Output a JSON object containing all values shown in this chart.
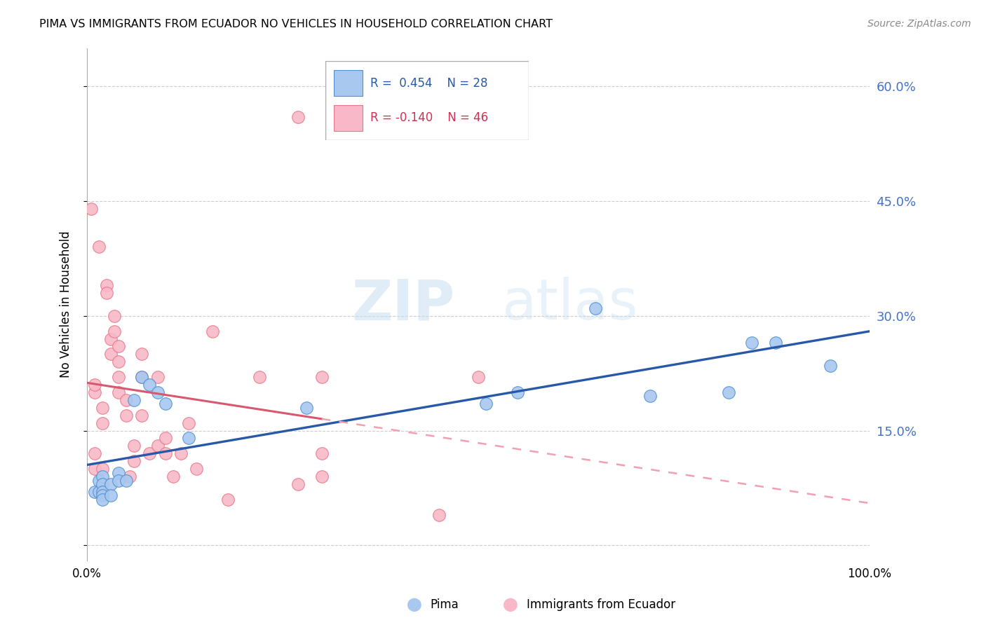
{
  "title": "PIMA VS IMMIGRANTS FROM ECUADOR NO VEHICLES IN HOUSEHOLD CORRELATION CHART",
  "source": "Source: ZipAtlas.com",
  "ylabel": "No Vehicles in Household",
  "watermark_zip": "ZIP",
  "watermark_atlas": "atlas",
  "xlim": [
    0.0,
    1.0
  ],
  "ylim": [
    -0.02,
    0.65
  ],
  "yticks": [
    0.0,
    0.15,
    0.3,
    0.45,
    0.6
  ],
  "ytick_labels": [
    "",
    "15.0%",
    "30.0%",
    "45.0%",
    "60.0%"
  ],
  "xticks": [
    0.0,
    0.25,
    0.5,
    0.75,
    1.0
  ],
  "xtick_labels": [
    "0.0%",
    "",
    "",
    "",
    "100.0%"
  ],
  "blue_fill": "#A8C8F0",
  "blue_edge": "#5090D0",
  "pink_fill": "#F8B8C8",
  "pink_edge": "#E87888",
  "blue_line": "#2858A8",
  "pink_line_solid": "#D85870",
  "pink_line_dash": "#F0A0B0",
  "pima_x": [
    0.01,
    0.015,
    0.015,
    0.02,
    0.02,
    0.02,
    0.02,
    0.02,
    0.03,
    0.03,
    0.04,
    0.04,
    0.05,
    0.06,
    0.07,
    0.08,
    0.09,
    0.1,
    0.13,
    0.28,
    0.51,
    0.55,
    0.65,
    0.72,
    0.82,
    0.85,
    0.88,
    0.95
  ],
  "pima_y": [
    0.07,
    0.085,
    0.07,
    0.09,
    0.08,
    0.07,
    0.065,
    0.06,
    0.08,
    0.065,
    0.095,
    0.085,
    0.085,
    0.19,
    0.22,
    0.21,
    0.2,
    0.185,
    0.14,
    0.18,
    0.185,
    0.2,
    0.31,
    0.195,
    0.2,
    0.265,
    0.265,
    0.235
  ],
  "ecuador_x": [
    0.005,
    0.01,
    0.01,
    0.01,
    0.01,
    0.015,
    0.02,
    0.02,
    0.02,
    0.025,
    0.025,
    0.03,
    0.03,
    0.035,
    0.035,
    0.04,
    0.04,
    0.04,
    0.04,
    0.05,
    0.05,
    0.055,
    0.06,
    0.06,
    0.07,
    0.07,
    0.07,
    0.08,
    0.09,
    0.09,
    0.1,
    0.1,
    0.11,
    0.12,
    0.13,
    0.14,
    0.16,
    0.18,
    0.22,
    0.27,
    0.27,
    0.3,
    0.3,
    0.3,
    0.45,
    0.5
  ],
  "ecuador_y": [
    0.44,
    0.2,
    0.21,
    0.12,
    0.1,
    0.39,
    0.18,
    0.16,
    0.1,
    0.34,
    0.33,
    0.27,
    0.25,
    0.3,
    0.28,
    0.26,
    0.22,
    0.2,
    0.24,
    0.19,
    0.17,
    0.09,
    0.13,
    0.11,
    0.25,
    0.22,
    0.17,
    0.12,
    0.22,
    0.13,
    0.14,
    0.12,
    0.09,
    0.12,
    0.16,
    0.1,
    0.28,
    0.06,
    0.22,
    0.56,
    0.08,
    0.12,
    0.09,
    0.22,
    0.04,
    0.22
  ]
}
